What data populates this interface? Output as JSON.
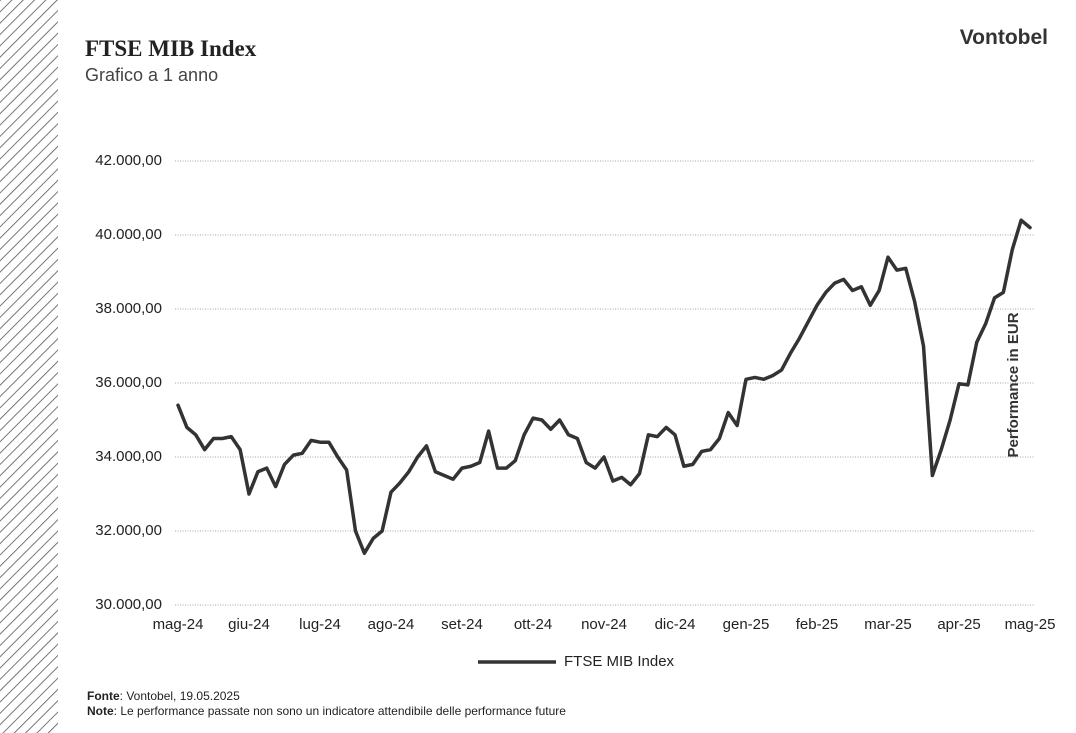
{
  "header": {
    "brand": "Vontobel"
  },
  "chart_data": {
    "type": "line",
    "title": "FTSE MIB Index",
    "subtitle": "Grafico a 1 anno",
    "y_label": "Performance in EUR",
    "categories": [
      "mag-24",
      null,
      null,
      null,
      null,
      null,
      null,
      null,
      "giu-24",
      null,
      null,
      null,
      null,
      null,
      null,
      null,
      "lug-24",
      null,
      null,
      null,
      null,
      null,
      null,
      null,
      "ago-24",
      null,
      null,
      null,
      null,
      null,
      null,
      null,
      "set-24",
      null,
      null,
      null,
      null,
      null,
      null,
      null,
      "ott-24",
      null,
      null,
      null,
      null,
      null,
      null,
      null,
      "nov-24",
      null,
      null,
      null,
      null,
      null,
      null,
      null,
      "dic-24",
      null,
      null,
      null,
      null,
      null,
      null,
      null,
      "gen-25",
      null,
      null,
      null,
      null,
      null,
      null,
      null,
      "feb-25",
      null,
      null,
      null,
      null,
      null,
      null,
      null,
      "mar-25",
      null,
      null,
      null,
      null,
      null,
      null,
      null,
      "apr-25",
      null,
      null,
      null,
      null,
      null,
      null,
      null,
      "mag-25"
    ],
    "series": [
      {
        "name": "FTSE MIB Index",
        "color": "#333333",
        "values": [
          35400,
          34800,
          34600,
          34200,
          34500,
          34500,
          34550,
          34200,
          33000,
          33600,
          33700,
          33200,
          33800,
          34050,
          34100,
          34450,
          34400,
          34400,
          34000,
          33650,
          32000,
          31400,
          31800,
          32000,
          33050,
          33300,
          33600,
          34000,
          34300,
          33600,
          33500,
          33400,
          33700,
          33750,
          33850,
          34700,
          33700,
          33700,
          33900,
          34600,
          35050,
          35000,
          34750,
          35000,
          34600,
          34500,
          33850,
          33700,
          34000,
          33350,
          33450,
          33250,
          33550,
          34600,
          34550,
          34800,
          34600,
          33750,
          33800,
          34150,
          34200,
          34500,
          35200,
          34850,
          36100,
          36150,
          36100,
          36200,
          36350,
          36800,
          37200,
          37650,
          38100,
          38450,
          38700,
          38800,
          38500,
          38600,
          38100,
          38500,
          39400,
          39050,
          39100,
          38200,
          37000,
          33500,
          34200,
          35000,
          35980,
          35950,
          37100,
          37600,
          38300,
          38450,
          39600,
          40400,
          40200
        ]
      }
    ],
    "ylim": [
      30000,
      42000
    ],
    "yticks": [
      {
        "value": 30000,
        "label": "30.000,00"
      },
      {
        "value": 32000,
        "label": "32.000,00"
      },
      {
        "value": 34000,
        "label": "34.000,00"
      },
      {
        "value": 36000,
        "label": "36.000,00"
      },
      {
        "value": 38000,
        "label": "38.000,00"
      },
      {
        "value": 40000,
        "label": "40.000,00"
      },
      {
        "value": 42000,
        "label": "42.000,00"
      }
    ],
    "grid": true,
    "legend": "bottom"
  },
  "footer": {
    "source_label": "Fonte",
    "source_text": ": Vontobel, 19.05.2025",
    "note_label": "Note",
    "note_text": ": Le performance passate non sono un indicatore attendibile delle performance future"
  }
}
